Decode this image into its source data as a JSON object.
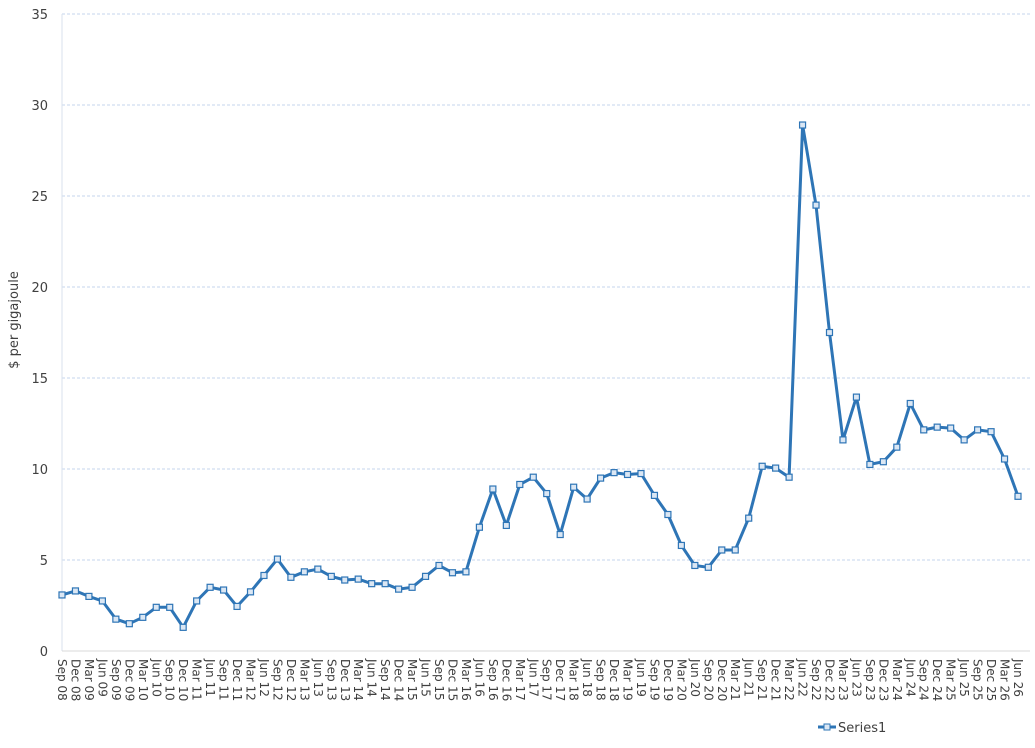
{
  "chart_data": {
    "type": "line",
    "y_label": "$ per gigajoule",
    "categories": [
      "Sep 08",
      "Dec 08",
      "Mar 09",
      "Jun 09",
      "Sep 09",
      "Dec 09",
      "Mar 10",
      "Jun 10",
      "Sep 10",
      "Dec 10",
      "Mar 11",
      "Jun 11",
      "Sep 11",
      "Dec 11",
      "Mar 12",
      "Jun 12",
      "Sep 12",
      "Dec 12",
      "Mar 13",
      "Jun 13",
      "Sep 13",
      "Dec 13",
      "Mar 14",
      "Jun 14",
      "Sep 14",
      "Dec 14",
      "Mar 15",
      "Jun 15",
      "Sep 15",
      "Dec 15",
      "Mar 16",
      "Jun 16",
      "Sep 16",
      "Dec 16",
      "Mar 17",
      "Jun 17",
      "Sep 17",
      "Dec 17",
      "Mar 18",
      "Jun 18",
      "Sep 18",
      "Dec 18",
      "Mar 19",
      "Jun 19",
      "Sep 19",
      "Dec 19",
      "Mar 20",
      "Jun 20",
      "Sep 20",
      "Dec 20",
      "Mar 21",
      "Jun 21",
      "Sep 21",
      "Dec 21",
      "Mar 22",
      "Jun 22",
      "Sep 22",
      "Dec 22",
      "Mar 23",
      "Jun 23",
      "Sep 23",
      "Dec 23",
      "Mar 24",
      "Jun 24",
      "Sep 24",
      "Dec 24",
      "Mar 25",
      "Jun 25",
      "Sep 25",
      "Dec 25",
      "Mar 26",
      "Jun 26"
    ],
    "series": [
      {
        "name": "Series1",
        "color": "#2e75b6",
        "values": [
          3.08,
          3.3,
          3.0,
          2.75,
          1.75,
          1.5,
          1.85,
          2.4,
          2.4,
          1.3,
          2.75,
          3.5,
          3.35,
          2.45,
          3.25,
          4.15,
          5.05,
          4.05,
          4.35,
          4.5,
          4.1,
          3.9,
          3.95,
          3.7,
          3.7,
          3.4,
          3.5,
          4.1,
          4.7,
          4.3,
          4.35,
          6.8,
          8.9,
          6.9,
          9.15,
          9.55,
          8.65,
          6.4,
          9.0,
          8.35,
          9.5,
          9.8,
          9.7,
          9.75,
          8.55,
          7.5,
          5.8,
          4.7,
          4.6,
          5.55,
          5.55,
          7.3,
          10.15,
          10.05,
          9.55,
          28.9,
          24.5,
          17.5,
          11.6,
          13.95,
          10.25,
          10.4,
          11.2,
          13.6,
          12.15,
          12.3,
          12.25,
          11.6,
          12.15,
          12.05,
          10.55,
          8.5
        ]
      }
    ],
    "ylim": [
      0,
      35
    ],
    "yticks": [
      0,
      5,
      10,
      15,
      20,
      25,
      30,
      35
    ],
    "grid": true,
    "legend": "bottom"
  }
}
